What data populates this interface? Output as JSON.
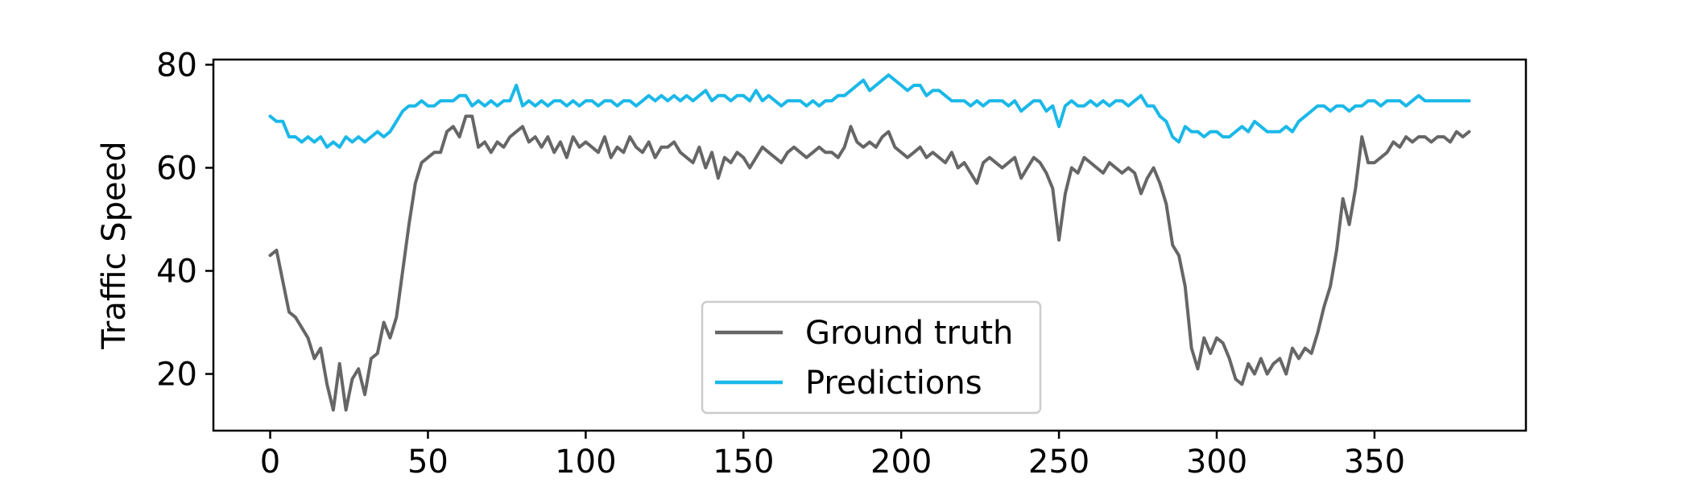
{
  "chart_data": {
    "type": "line",
    "title": "",
    "xlabel": "",
    "ylabel": "Traffic Speed",
    "xlim": [
      -18,
      398
    ],
    "ylim": [
      9,
      81
    ],
    "xticks": [
      0,
      50,
      100,
      150,
      200,
      250,
      300,
      350
    ],
    "yticks": [
      20,
      40,
      60,
      80
    ],
    "grid": false,
    "legend": {
      "position": "bottom-center"
    },
    "series": [
      {
        "name": "Ground truth",
        "color": "#666666",
        "x": [
          0,
          2,
          4,
          6,
          8,
          10,
          12,
          14,
          16,
          18,
          20,
          22,
          24,
          26,
          28,
          30,
          32,
          34,
          36,
          38,
          40,
          42,
          44,
          46,
          48,
          50,
          52,
          54,
          56,
          58,
          60,
          62,
          64,
          66,
          68,
          70,
          72,
          74,
          76,
          78,
          80,
          82,
          84,
          86,
          88,
          90,
          92,
          94,
          96,
          98,
          100,
          102,
          104,
          106,
          108,
          110,
          112,
          114,
          116,
          118,
          120,
          122,
          124,
          126,
          128,
          130,
          132,
          134,
          136,
          138,
          140,
          142,
          144,
          146,
          148,
          150,
          152,
          154,
          156,
          158,
          160,
          162,
          164,
          166,
          168,
          170,
          172,
          174,
          176,
          178,
          180,
          182,
          184,
          186,
          188,
          190,
          192,
          194,
          196,
          198,
          200,
          202,
          204,
          206,
          208,
          210,
          212,
          214,
          216,
          218,
          220,
          222,
          224,
          226,
          228,
          230,
          232,
          234,
          236,
          238,
          240,
          242,
          244,
          246,
          248,
          250,
          252,
          254,
          256,
          258,
          260,
          262,
          264,
          266,
          268,
          270,
          272,
          274,
          276,
          278,
          280,
          282,
          284,
          286,
          288,
          290,
          292,
          294,
          296,
          298,
          300,
          302,
          304,
          306,
          308,
          310,
          312,
          314,
          316,
          318,
          320,
          322,
          324,
          326,
          328,
          330,
          332,
          334,
          336,
          338,
          340,
          342,
          344,
          346,
          348,
          350,
          352,
          354,
          356,
          358,
          360,
          362,
          364,
          366,
          368,
          370,
          372,
          374,
          376,
          378,
          380
        ],
        "values": [
          43,
          44,
          38,
          32,
          31,
          29,
          27,
          23,
          25,
          18,
          13,
          22,
          13,
          19,
          21,
          16,
          23,
          24,
          30,
          27,
          31,
          40,
          49,
          57,
          61,
          62,
          63,
          63,
          67,
          68,
          66,
          70,
          70,
          64,
          65,
          63,
          65,
          64,
          66,
          67,
          68,
          65,
          66,
          64,
          66,
          63,
          65,
          62,
          66,
          64,
          65,
          64,
          63,
          66,
          62,
          64,
          63,
          66,
          64,
          63,
          65,
          62,
          64,
          64,
          65,
          63,
          62,
          61,
          64,
          60,
          63,
          58,
          62,
          61,
          63,
          62,
          60,
          62,
          64,
          63,
          62,
          61,
          63,
          64,
          63,
          62,
          63,
          64,
          63,
          63,
          62,
          64,
          68,
          65,
          64,
          65,
          64,
          66,
          67,
          64,
          63,
          62,
          63,
          64,
          62,
          63,
          62,
          61,
          63,
          60,
          61,
          59,
          57,
          61,
          62,
          61,
          60,
          61,
          62,
          58,
          60,
          62,
          61,
          59,
          56,
          46,
          55,
          60,
          59,
          62,
          61,
          60,
          59,
          61,
          60,
          59,
          60,
          59,
          55,
          58,
          60,
          57,
          53,
          45,
          43,
          37,
          25,
          21,
          27,
          24,
          27,
          26,
          23,
          19,
          18,
          22,
          20,
          23,
          20,
          22,
          23,
          20,
          25,
          23,
          25,
          24,
          28,
          33,
          37,
          44,
          54,
          49,
          56,
          66,
          61,
          61,
          62,
          63,
          65,
          64,
          66,
          65,
          66,
          66,
          65,
          66,
          66,
          65,
          67,
          66,
          67
        ]
      },
      {
        "name": "Predictions",
        "color": "#1ab8e8",
        "x": [
          0,
          2,
          4,
          6,
          8,
          10,
          12,
          14,
          16,
          18,
          20,
          22,
          24,
          26,
          28,
          30,
          32,
          34,
          36,
          38,
          40,
          42,
          44,
          46,
          48,
          50,
          52,
          54,
          56,
          58,
          60,
          62,
          64,
          66,
          68,
          70,
          72,
          74,
          76,
          78,
          80,
          82,
          84,
          86,
          88,
          90,
          92,
          94,
          96,
          98,
          100,
          102,
          104,
          106,
          108,
          110,
          112,
          114,
          116,
          118,
          120,
          122,
          124,
          126,
          128,
          130,
          132,
          134,
          136,
          138,
          140,
          142,
          144,
          146,
          148,
          150,
          152,
          154,
          156,
          158,
          160,
          162,
          164,
          166,
          168,
          170,
          172,
          174,
          176,
          178,
          180,
          182,
          184,
          186,
          188,
          190,
          192,
          194,
          196,
          198,
          200,
          202,
          204,
          206,
          208,
          210,
          212,
          214,
          216,
          218,
          220,
          222,
          224,
          226,
          228,
          230,
          232,
          234,
          236,
          238,
          240,
          242,
          244,
          246,
          248,
          250,
          252,
          254,
          256,
          258,
          260,
          262,
          264,
          266,
          268,
          270,
          272,
          274,
          276,
          278,
          280,
          282,
          284,
          286,
          288,
          290,
          292,
          294,
          296,
          298,
          300,
          302,
          304,
          306,
          308,
          310,
          312,
          314,
          316,
          318,
          320,
          322,
          324,
          326,
          328,
          330,
          332,
          334,
          336,
          338,
          340,
          342,
          344,
          346,
          348,
          350,
          352,
          354,
          356,
          358,
          360,
          362,
          364,
          366,
          368,
          370,
          372,
          374,
          376,
          378,
          380
        ],
        "values": [
          70,
          69,
          69,
          66,
          66,
          65,
          66,
          65,
          66,
          64,
          65,
          64,
          66,
          65,
          66,
          65,
          66,
          67,
          66,
          67,
          69,
          71,
          72,
          72,
          73,
          72,
          72,
          73,
          73,
          73,
          74,
          74,
          72,
          73,
          72,
          73,
          72,
          73,
          73,
          76,
          72,
          73,
          72,
          73,
          72,
          73,
          73,
          72,
          73,
          72,
          73,
          73,
          72,
          73,
          73,
          72,
          73,
          73,
          72,
          73,
          74,
          73,
          74,
          73,
          74,
          73,
          74,
          73,
          74,
          75,
          73,
          74,
          74,
          73,
          74,
          74,
          73,
          75,
          73,
          74,
          73,
          72,
          73,
          73,
          73,
          72,
          73,
          72,
          73,
          73,
          74,
          74,
          75,
          76,
          77,
          75,
          76,
          77,
          78,
          77,
          76,
          75,
          76,
          76,
          74,
          75,
          75,
          74,
          73,
          73,
          73,
          72,
          73,
          72,
          73,
          73,
          73,
          72,
          73,
          71,
          72,
          73,
          73,
          71,
          72,
          68,
          72,
          73,
          72,
          72,
          73,
          72,
          73,
          72,
          73,
          73,
          72,
          73,
          74,
          72,
          72,
          70,
          69,
          66,
          65,
          68,
          67,
          67,
          66,
          67,
          67,
          66,
          66,
          67,
          68,
          67,
          69,
          68,
          67,
          67,
          67,
          68,
          67,
          69,
          70,
          71,
          72,
          72,
          71,
          72,
          72,
          71,
          72,
          72,
          73,
          73,
          72,
          73,
          73,
          73,
          72,
          73,
          74,
          73,
          73,
          73,
          73,
          73,
          73,
          73,
          73
        ]
      }
    ]
  }
}
